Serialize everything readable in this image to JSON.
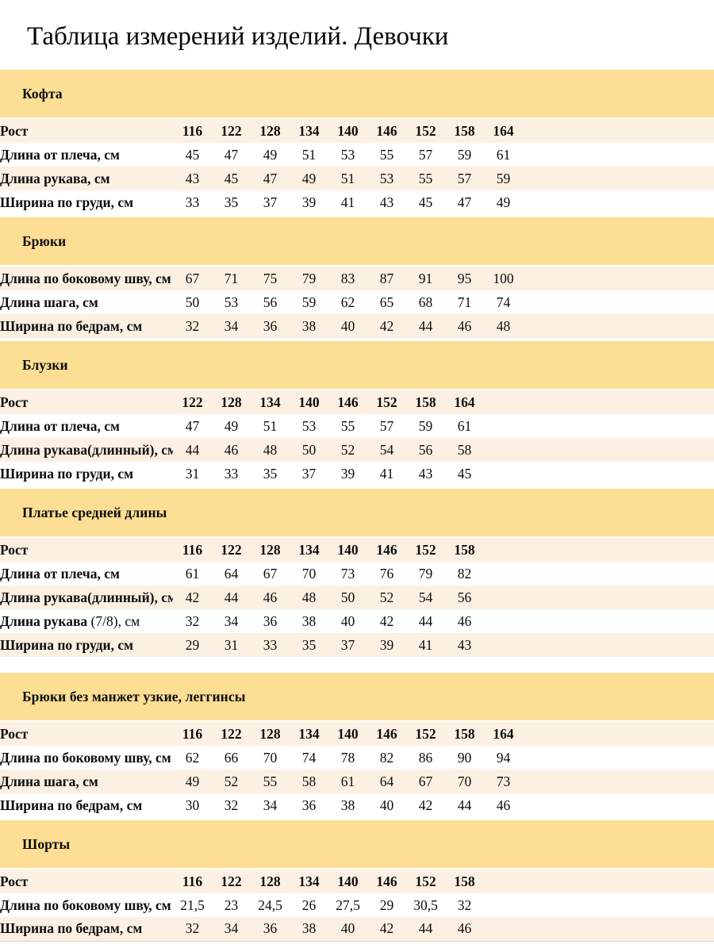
{
  "page": {
    "title": "Таблица измерений изделий. Девочки"
  },
  "colors": {
    "band": "#fcde94",
    "stripe": "#fcf0e2",
    "text": "#0d0d0d"
  },
  "sections": [
    {
      "title": "Кофта",
      "rows": [
        {
          "label": "Рост",
          "header": true,
          "values": [
            "116",
            "122",
            "128",
            "134",
            "140",
            "146",
            "152",
            "158",
            "164"
          ]
        },
        {
          "label": "Длина от плеча, см",
          "values": [
            "45",
            "47",
            "49",
            "51",
            "53",
            "55",
            "57",
            "59",
            "61"
          ]
        },
        {
          "label": "Длина рукава, см",
          "values": [
            "43",
            "45",
            "47",
            "49",
            "51",
            "53",
            "55",
            "57",
            "59"
          ]
        },
        {
          "label": "Ширина по груди, см",
          "values": [
            "33",
            "35",
            "37",
            "39",
            "41",
            "43",
            "45",
            "47",
            "49"
          ]
        }
      ]
    },
    {
      "title": "Брюки",
      "rows": [
        {
          "label": "Длина по боковому шву, см",
          "values": [
            "67",
            "71",
            "75",
            "79",
            "83",
            "87",
            "91",
            "95",
            "100"
          ]
        },
        {
          "label": "Длина шага, см",
          "values": [
            "50",
            "53",
            "56",
            "59",
            "62",
            "65",
            "68",
            "71",
            "74"
          ]
        },
        {
          "label": "Ширина по бедрам, см",
          "values": [
            "32",
            "34",
            "36",
            "38",
            "40",
            "42",
            "44",
            "46",
            "48"
          ]
        }
      ]
    },
    {
      "title": "Блузки",
      "rows": [
        {
          "label": "Рост",
          "header": true,
          "values": [
            "122",
            "128",
            "134",
            "140",
            "146",
            "152",
            "158",
            "164"
          ]
        },
        {
          "label": "Длина от плеча, см",
          "values": [
            "47",
            "49",
            "51",
            "53",
            "55",
            "57",
            "59",
            "61"
          ]
        },
        {
          "label": "Длина рукава(длинный), см",
          "values": [
            "44",
            "46",
            "48",
            "50",
            "52",
            "54",
            "56",
            "58"
          ]
        },
        {
          "label": "Ширина по груди, см",
          "values": [
            "31",
            "33",
            "35",
            "37",
            "39",
            "41",
            "43",
            "45"
          ]
        }
      ]
    },
    {
      "title": "Платье средней длины",
      "rows": [
        {
          "label": "Рост",
          "header": true,
          "values": [
            "116",
            "122",
            "128",
            "134",
            "140",
            "146",
            "152",
            "158"
          ]
        },
        {
          "label": "Длина от плеча, см",
          "values": [
            "61",
            "64",
            "67",
            "70",
            "73",
            "76",
            "79",
            "82"
          ]
        },
        {
          "label": "Длина рукава(длинный), см",
          "values": [
            "42",
            "44",
            "46",
            "48",
            "50",
            "52",
            "54",
            "56"
          ]
        },
        {
          "label": "Длина рукава",
          "label_suffix": " (7/8), см",
          "values": [
            "32",
            "34",
            "36",
            "38",
            "40",
            "42",
            "44",
            "46"
          ]
        },
        {
          "label": "Ширина по груди, см",
          "values": [
            "29",
            "31",
            "33",
            "35",
            "37",
            "39",
            "41",
            "43"
          ]
        }
      ]
    },
    {
      "title": "Брюки без манжет узкие, леггинсы",
      "rows": [
        {
          "label": "Рост",
          "header": true,
          "values": [
            "116",
            "122",
            "128",
            "134",
            "140",
            "146",
            "152",
            "158",
            "164"
          ]
        },
        {
          "label": "Длина по боковому шву, см",
          "values": [
            "62",
            "66",
            "70",
            "74",
            "78",
            "82",
            "86",
            "90",
            "94"
          ]
        },
        {
          "label": "Длина шага, см",
          "values": [
            "49",
            "52",
            "55",
            "58",
            "61",
            "64",
            "67",
            "70",
            "73"
          ]
        },
        {
          "label": "Ширина по бедрам, см",
          "values": [
            "30",
            "32",
            "34",
            "36",
            "38",
            "40",
            "42",
            "44",
            "46"
          ]
        }
      ]
    },
    {
      "title": "Шорты",
      "rows": [
        {
          "label": "Рост",
          "header": true,
          "values": [
            "116",
            "122",
            "128",
            "134",
            "140",
            "146",
            "152",
            "158"
          ]
        },
        {
          "label": "Длина по боковому шву, см",
          "values": [
            "21,5",
            "23",
            "24,5",
            "26",
            "27,5",
            "29",
            "30,5",
            "32"
          ]
        },
        {
          "label": "Ширина по бедрам, см",
          "values": [
            "32",
            "34",
            "36",
            "38",
            "40",
            "42",
            "44",
            "46"
          ]
        }
      ]
    }
  ]
}
